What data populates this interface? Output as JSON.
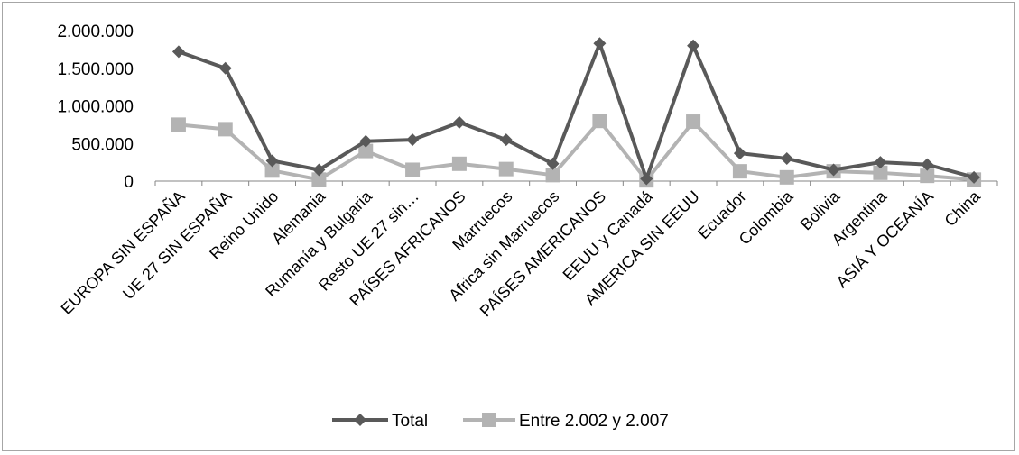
{
  "chart_data": {
    "type": "line",
    "title": "",
    "xlabel": "",
    "ylabel": "",
    "ylim": [
      0,
      2000000
    ],
    "yticks": [
      "0",
      "500.000",
      "1.000.000",
      "1.500.000",
      "2.000.000"
    ],
    "grid": false,
    "legend_position": "bottom",
    "categories": [
      "EUROPA SIN ESPAÑA",
      "UE 27 SIN ESPAÑA",
      "Reino Unido",
      "Alemania",
      "Rumanía y Bulgaria",
      "Resto UE 27 sin…",
      "PAÍSES AFRICANOS",
      "Marruecos",
      "Africa sin Marruecos",
      "PAÍSES AMERICANOS",
      "EEUU y Canadá",
      "AMERICA SIN EEUU",
      "Ecuador",
      "Colombia",
      "Bolivia",
      "Argentina",
      "ASIÁ Y OCEANÍA",
      "China"
    ],
    "series": [
      {
        "name": "Total",
        "color": "#595959",
        "marker": "diamond",
        "values": [
          1720000,
          1500000,
          270000,
          150000,
          530000,
          550000,
          780000,
          550000,
          230000,
          1830000,
          30000,
          1800000,
          370000,
          300000,
          150000,
          250000,
          220000,
          50000
        ]
      },
      {
        "name": "Entre 2.002 y 2.007",
        "color": "#b3b3b3",
        "marker": "square",
        "values": [
          750000,
          690000,
          140000,
          20000,
          400000,
          150000,
          230000,
          160000,
          80000,
          800000,
          10000,
          790000,
          130000,
          50000,
          130000,
          110000,
          70000,
          20000
        ]
      }
    ]
  }
}
